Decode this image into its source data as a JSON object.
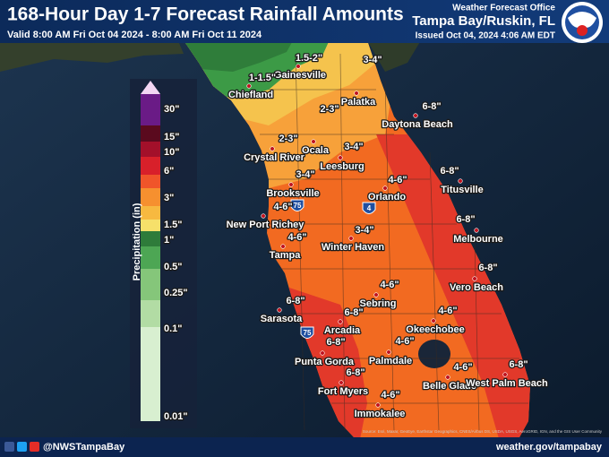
{
  "header": {
    "title": "168-Hour Day 1-7 Forecast Rainfall Amounts",
    "valid": "Valid 8:00 AM Fri Oct 04 2024 - 8:00 AM Fri Oct 11 2024",
    "office": "Weather Forecast Office",
    "location": "Tampa Bay/Ruskin, FL",
    "issued": "Issued Oct 04, 2024 4:06 AM EDT"
  },
  "legend": {
    "title": "Precipitation (in)",
    "labels": [
      "30\"",
      "15\"",
      "10\"",
      "6\"",
      "3\"",
      "1.5\"",
      "1\"",
      "0.5\"",
      "0.25\"",
      "0.1\"",
      "0.01\""
    ]
  },
  "cities": [
    "Gainesville",
    "Palatka",
    "Chiefland",
    "Ocala",
    "Daytona Beach",
    "Crystal River",
    "Leesburg",
    "Titusville",
    "Brooksville",
    "Orlando",
    "New Port Richey",
    "Melbourne",
    "Winter Haven",
    "Tampa",
    "Vero Beach",
    "Sebring",
    "Sarasota",
    "Okeechobee",
    "Arcadia",
    "Palmdale",
    "Punta Gorda",
    "Belle Glade",
    "West Palm Beach",
    "Fort Myers",
    "Immokalee"
  ],
  "amounts": [
    "1.5-2\"",
    "3-4\"",
    "1-1.5\"",
    "2-3\"",
    "6-8\"",
    "2-3\"",
    "3-4\"",
    "6-8\"",
    "3-4\"",
    "4-6\"",
    "4-6\"",
    "6-8\"",
    "3-4\"",
    "4-6\"",
    "6-8\"",
    "4-6\"",
    "6-8\"",
    "6-8\"",
    "4-6\"",
    "6-8\"",
    "4-6\"",
    "6-8\"",
    "4-6\"",
    "6-8\"",
    "4-6\""
  ],
  "highways": [
    "75",
    "4",
    "75"
  ],
  "attribution": "Source: Esri, Maxar, GeoEye, Earthstar Geographics, CNES/Airbus DS, USDA, USGS, AeroGRID, IGN, and the GIS User Community",
  "footer": {
    "handle": "@NWSTampaBay",
    "url": "weather.gov/tampabay"
  }
}
